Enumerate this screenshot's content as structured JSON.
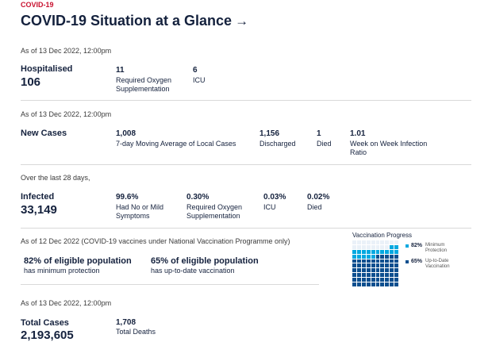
{
  "header": {
    "eyebrow": "COVID-19",
    "title": "COVID-19 Situation at a Glance",
    "arrow": "→"
  },
  "hospital": {
    "as_of": "As of 13 Dec 2022, 12:00pm",
    "label": "Hospitalised",
    "value": "106",
    "oxygen_value": "11",
    "oxygen_label": "Required Oxygen Supplementation",
    "icu_value": "6",
    "icu_label": "ICU"
  },
  "cases": {
    "as_of": "As of 13 Dec 2022, 12:00pm",
    "label": "New Cases",
    "avg_value": "1,008",
    "avg_label": "7-day Moving Average of Local Cases",
    "discharged_value": "1,156",
    "discharged_label": "Discharged",
    "died_value": "1",
    "died_label": "Died",
    "ratio_value": "1.01",
    "ratio_label": "Week on Week Infection Ratio"
  },
  "infected": {
    "as_of": "Over the last 28 days,",
    "label": "Infected",
    "value": "33,149",
    "mild_value": "99.6%",
    "mild_label": "Had No or Mild Symptoms",
    "oxygen_value": "0.30%",
    "oxygen_label": "Required Oxygen Supplementation",
    "icu_value": "0.03%",
    "icu_label": "ICU",
    "died_value": "0.02%",
    "died_label": "Died"
  },
  "vaccination": {
    "as_of": "As of 12 Dec 2022 (COVID-19 vaccines under National Vaccination Programme only)",
    "min_headline": "82% of eligible population",
    "min_sub": "has minimum protection",
    "utd_headline": "65% of eligible population",
    "utd_sub": "has up-to-date vaccination",
    "progress_title": "Vaccination Progress",
    "legend": [
      {
        "pct": "82%",
        "label": "Minimum Protection"
      },
      {
        "pct": "65%",
        "label": "Up-to-Date Vaccination"
      }
    ],
    "colors": {
      "minimum": "#0d4f8f",
      "up_to_date": "#00a8e0",
      "empty": "#eaf1f8"
    },
    "minimum_fraction": 0.82,
    "up_to_date_fraction": 0.65
  },
  "totals": {
    "as_of": "As of 13 Dec 2022, 12:00pm",
    "label": "Total Cases",
    "value": "2,193,605",
    "deaths_value": "1,708",
    "deaths_label": "Total Deaths"
  }
}
